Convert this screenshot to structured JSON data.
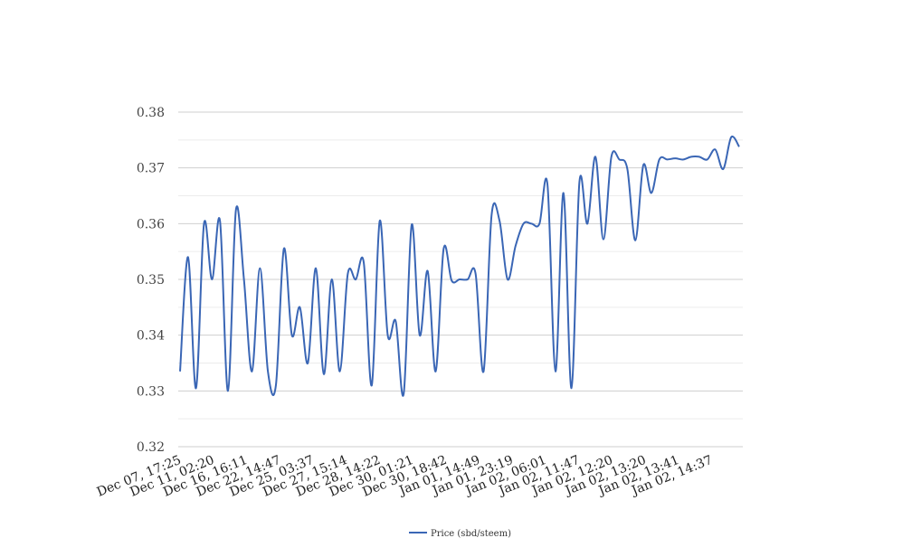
{
  "chart_data": {
    "type": "line",
    "title": "",
    "xlabel": "",
    "ylabel": "",
    "ylim": [
      0.32,
      0.38
    ],
    "yticks": [
      "0.32",
      "0.33",
      "0.34",
      "0.35",
      "0.36",
      "0.37",
      "0.38"
    ],
    "grid": true,
    "legend_position": "bottom",
    "line_color": "#3a66b5",
    "x_tick_labels": [
      "Dec 07, 17:25",
      "Dec 11, 02:20",
      "Dec 16, 16:11",
      "Dec 22, 14:47",
      "Dec 25, 03:37",
      "Dec 27, 15:14",
      "Dec 28, 14:22",
      "Dec 30, 01:21",
      "Dec 30, 18:42",
      "Jan 01, 14:49",
      "Jan 01, 23:19",
      "Jan 02, 06:01",
      "Jan 02, 11:47",
      "Jan 02, 12:20",
      "Jan 02, 13:20",
      "Jan 02, 13:41",
      "Jan 02, 14:37"
    ],
    "series": [
      {
        "name": "Price (sbd/steem)",
        "values": [
          0.3335,
          0.354,
          0.3305,
          0.36,
          0.35,
          0.3605,
          0.33,
          0.3625,
          0.35,
          0.3335,
          0.352,
          0.3335,
          0.331,
          0.3555,
          0.34,
          0.345,
          0.335,
          0.352,
          0.333,
          0.35,
          0.3335,
          0.351,
          0.35,
          0.353,
          0.331,
          0.3605,
          0.34,
          0.3425,
          0.3295,
          0.3598,
          0.34,
          0.3515,
          0.3335,
          0.3555,
          0.3498,
          0.35,
          0.35,
          0.351,
          0.3335,
          0.3615,
          0.3605,
          0.35,
          0.356,
          0.36,
          0.36,
          0.36,
          0.367,
          0.3335,
          0.3655,
          0.3305,
          0.3675,
          0.36,
          0.372,
          0.3572,
          0.372,
          0.3715,
          0.3698,
          0.357,
          0.3705,
          0.3655,
          0.3715,
          0.3715,
          0.3717,
          0.3715,
          0.372,
          0.372,
          0.3715,
          0.3733,
          0.3698,
          0.3755,
          0.3738
        ]
      }
    ]
  }
}
